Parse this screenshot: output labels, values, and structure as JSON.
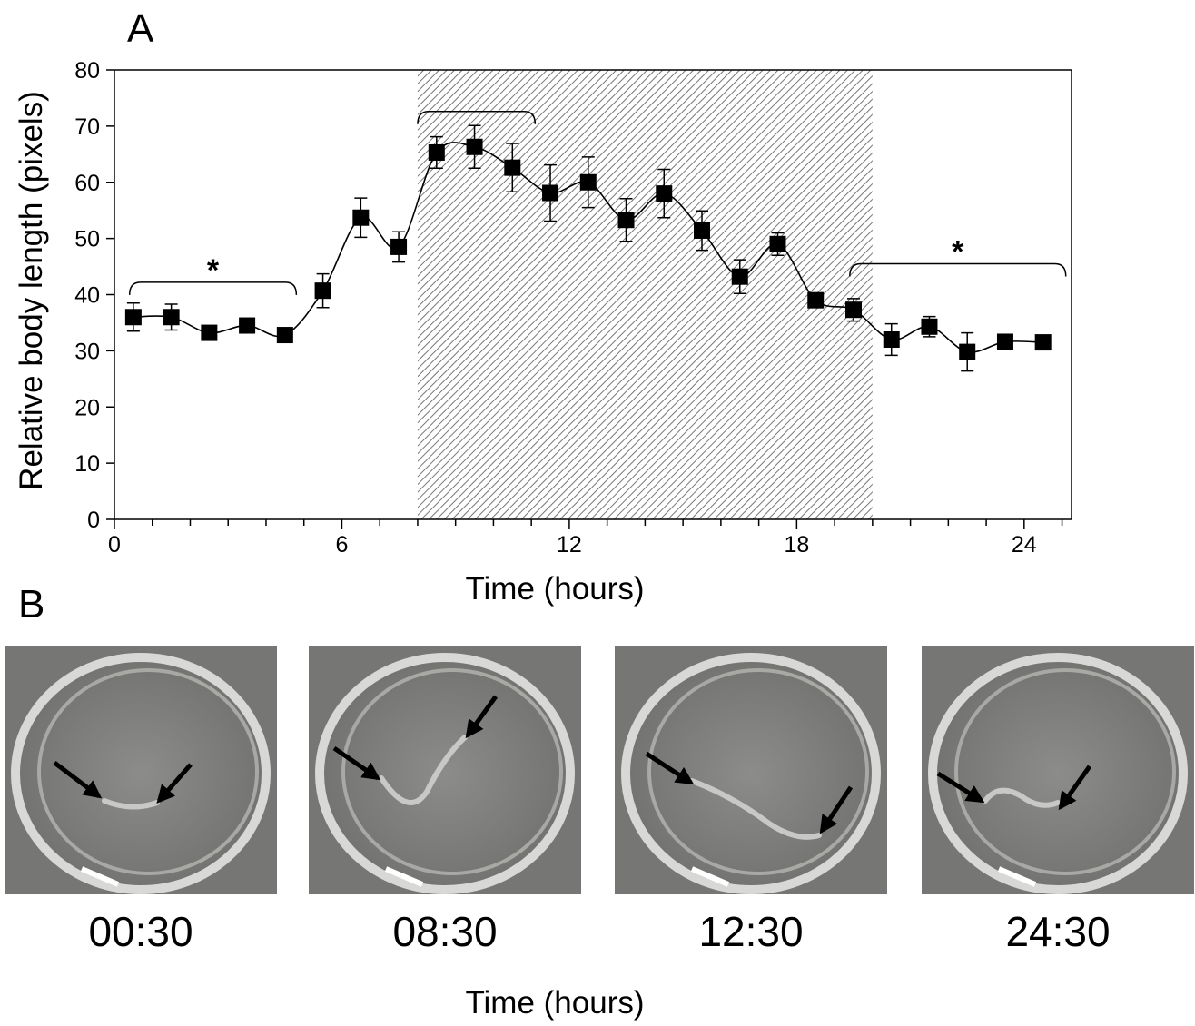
{
  "panel_a": {
    "label": "A"
  },
  "chart_data": {
    "type": "line",
    "xlabel": "Time (hours)",
    "ylabel": "Relative body length (pixels)",
    "x": [
      0.5,
      1.5,
      2.5,
      3.5,
      4.5,
      5.5,
      6.5,
      7.5,
      8.5,
      9.5,
      10.5,
      11.5,
      12.5,
      13.5,
      14.5,
      15.5,
      16.5,
      17.5,
      18.5,
      19.5,
      20.5,
      21.5,
      22.5,
      23.5,
      24.5
    ],
    "series": [
      {
        "color": "#000000",
        "values": [
          36,
          36,
          33.2,
          34.5,
          32.8,
          40.7,
          53.7,
          48.5,
          65.3,
          66.3,
          62.6,
          58.1,
          60,
          53.3,
          58,
          51.4,
          43.2,
          49,
          39,
          37.3,
          32,
          34.3,
          29.8,
          31.6,
          31.5
        ],
        "errors": [
          2.5,
          2.3,
          1.2,
          1.2,
          1,
          3,
          3.5,
          2.7,
          2.8,
          3.8,
          4.3,
          5,
          4.5,
          3.8,
          4.3,
          3.5,
          3,
          2,
          1,
          2,
          2.8,
          1.8,
          3.4,
          0.5,
          0.5
        ]
      }
    ],
    "xlim": [
      0,
      25.25
    ],
    "ylim": [
      0,
      80
    ],
    "xticks": [
      0,
      6,
      12,
      18,
      24
    ],
    "xminor_ticks": [
      1,
      2,
      3,
      4,
      5,
      7,
      8,
      9,
      10,
      11,
      13,
      14,
      15,
      16,
      17,
      19,
      20,
      21,
      22,
      23,
      25
    ],
    "yticks": [
      0,
      10,
      20,
      30,
      40,
      50,
      60,
      70,
      80
    ],
    "shaded_region": [
      8,
      20
    ],
    "brackets": [
      {
        "x": [
          0.4,
          4.8
        ],
        "y": 42.2,
        "label": "*"
      },
      {
        "x": [
          8,
          11.1
        ],
        "y": 72.6
      },
      {
        "x": [
          19.4,
          25.1
        ],
        "y": 45.5,
        "label": "*"
      }
    ]
  },
  "panel_b": {
    "label": "B",
    "frames": [
      "00:30",
      "08:30",
      "12:30",
      "24:30"
    ],
    "xlabel": "Time (hours)"
  }
}
